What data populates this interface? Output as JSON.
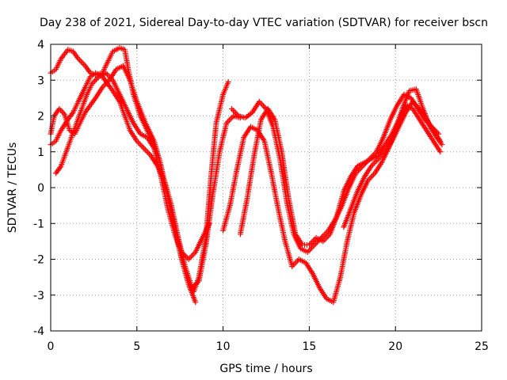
{
  "chart_data": {
    "type": "scatter",
    "title": "Day 238 of 2021, Sidereal Day-to-day VTEC variation (SDTVAR) for receiver bscn",
    "xlabel": "GPS time / hours",
    "ylabel": "SDTVAR / TECUs",
    "xlim": [
      0,
      25
    ],
    "ylim": [
      -4,
      4
    ],
    "xticks": [
      0,
      5,
      10,
      15,
      20,
      25
    ],
    "yticks": [
      -4,
      -3,
      -2,
      -1,
      0,
      1,
      2,
      3,
      4
    ],
    "xtick_labels": [
      "0",
      "5",
      "10",
      "15",
      "20",
      "25"
    ],
    "ytick_labels": [
      "-4",
      "-3",
      "-2",
      "-1",
      "0",
      "1",
      "2",
      "3",
      "4"
    ],
    "grid": true,
    "marker": "plus",
    "color": "#ff0000",
    "series": [
      {
        "x": [
          0.0,
          0.3,
          0.6,
          1.0,
          1.3,
          1.6,
          2.0,
          2.3,
          2.6,
          3.0,
          3.3,
          3.6,
          4.0,
          4.3,
          4.5,
          4.8,
          5.2,
          5.6,
          6.0,
          6.3,
          6.6,
          7.0,
          7.3,
          7.6,
          8.0,
          8.3,
          8.6,
          9.0,
          9.3,
          9.6,
          10.0,
          10.3
        ],
        "y": [
          3.2,
          3.3,
          3.6,
          3.85,
          3.8,
          3.6,
          3.4,
          3.2,
          3.15,
          3.2,
          3.5,
          3.8,
          3.9,
          3.85,
          3.3,
          2.6,
          2.0,
          1.6,
          1.2,
          0.8,
          0.1,
          -0.6,
          -1.3,
          -2.0,
          -2.6,
          -2.9,
          -2.5,
          -1.4,
          0.3,
          1.8,
          2.6,
          2.95
        ]
      },
      {
        "x": [
          0.0,
          0.3,
          0.6,
          1.0,
          1.3,
          1.6,
          2.0,
          2.3,
          2.6,
          3.0,
          3.3,
          3.6,
          4.0,
          4.3,
          4.6,
          5.0,
          5.4,
          5.8,
          6.2,
          6.6,
          7.0,
          7.4,
          7.8,
          8.2,
          8.6,
          9.0,
          9.4,
          9.8,
          10.2,
          10.6,
          11.0
        ],
        "y": [
          1.2,
          1.3,
          1.6,
          1.9,
          2.1,
          2.4,
          2.8,
          3.1,
          3.2,
          3.1,
          2.9,
          2.7,
          2.4,
          2.0,
          1.6,
          1.3,
          1.1,
          0.9,
          0.6,
          0.2,
          -0.5,
          -1.4,
          -2.2,
          -2.8,
          -2.6,
          -1.6,
          -0.2,
          1.0,
          1.8,
          2.0,
          1.95
        ]
      },
      {
        "x": [
          0.0,
          0.2,
          0.5,
          0.8,
          1.1,
          1.4,
          1.7,
          2.0,
          2.3,
          2.6,
          3.0,
          3.4,
          3.8,
          4.2,
          4.6,
          5.0,
          5.5,
          6.0,
          6.4,
          6.8,
          7.2,
          7.6,
          8.0,
          8.4
        ],
        "y": [
          1.5,
          2.0,
          2.2,
          2.05,
          1.6,
          1.5,
          1.8,
          2.1,
          2.3,
          2.5,
          2.8,
          3.0,
          3.3,
          3.4,
          3.0,
          2.4,
          1.8,
          1.3,
          0.6,
          -0.3,
          -1.2,
          -2.0,
          -2.7,
          -3.2
        ]
      },
      {
        "x": [
          0.3,
          0.6,
          0.9,
          1.2,
          1.5,
          1.8,
          2.1,
          2.4,
          2.8,
          3.2,
          3.6,
          4.0,
          4.4,
          4.8,
          5.2,
          5.6,
          6.0,
          6.4,
          6.8,
          7.2,
          7.6,
          8.0,
          8.4,
          8.8,
          9.2
        ],
        "y": [
          0.4,
          0.6,
          1.0,
          1.4,
          1.8,
          2.2,
          2.6,
          2.9,
          3.1,
          3.2,
          3.0,
          2.6,
          2.2,
          1.8,
          1.5,
          1.4,
          1.1,
          0.3,
          -0.6,
          -1.3,
          -1.8,
          -2.0,
          -1.8,
          -1.4,
          -1.0
        ]
      },
      {
        "x": [
          10.5,
          10.9,
          11.3,
          11.7,
          12.1,
          12.5,
          12.9,
          13.3,
          13.7,
          14.1,
          14.5,
          14.9,
          15.3,
          15.7,
          16.1,
          16.5,
          16.9,
          17.3,
          17.7,
          18.1,
          18.5,
          18.9,
          19.3,
          19.7,
          20.1,
          20.5,
          20.9,
          21.3,
          21.7,
          22.1,
          22.5
        ],
        "y": [
          2.2,
          2.0,
          1.95,
          2.1,
          2.4,
          2.2,
          1.7,
          0.8,
          -0.4,
          -1.3,
          -1.7,
          -1.8,
          -1.6,
          -1.4,
          -1.2,
          -0.9,
          -0.5,
          0.0,
          0.4,
          0.6,
          0.8,
          1.0,
          1.4,
          1.9,
          2.3,
          2.6,
          2.5,
          2.2,
          1.9,
          1.7,
          1.5
        ]
      },
      {
        "x": [
          10.0,
          10.4,
          10.8,
          11.2,
          11.6,
          12.0,
          12.4,
          12.8,
          13.2,
          13.6,
          14.0,
          14.4,
          14.8,
          15.2,
          15.6,
          16.0,
          16.4,
          16.8,
          17.2,
          17.6,
          18.0,
          18.4,
          18.8,
          19.2,
          19.6,
          20.0,
          20.4,
          20.8,
          21.2,
          21.6,
          22.0,
          22.4,
          22.7
        ],
        "y": [
          -1.2,
          -0.5,
          0.5,
          1.4,
          1.7,
          1.6,
          1.3,
          0.4,
          -0.6,
          -1.5,
          -2.2,
          -2.0,
          -2.1,
          -2.4,
          -2.8,
          -3.1,
          -3.2,
          -2.5,
          -1.5,
          -0.7,
          -0.2,
          0.2,
          0.4,
          0.7,
          1.1,
          1.6,
          2.2,
          2.7,
          2.75,
          2.2,
          1.7,
          1.4,
          1.2
        ]
      },
      {
        "x": [
          11.0,
          11.4,
          11.8,
          12.2,
          12.6,
          13.0,
          13.4,
          13.8,
          14.2,
          14.6,
          15.0,
          15.4,
          15.8,
          16.2,
          16.6,
          17.0,
          17.4,
          17.8,
          18.2,
          18.6,
          19.0,
          19.4,
          19.8,
          20.2,
          20.6,
          21.0,
          21.4,
          21.8,
          22.2,
          22.6
        ],
        "y": [
          -1.3,
          -0.3,
          0.9,
          1.9,
          2.2,
          1.9,
          1.0,
          -0.3,
          -1.3,
          -1.6,
          -1.6,
          -1.4,
          -1.5,
          -1.3,
          -0.8,
          -0.1,
          0.3,
          0.6,
          0.7,
          0.8,
          0.9,
          1.2,
          1.5,
          1.9,
          2.3,
          2.2,
          1.9,
          1.6,
          1.3,
          1.0
        ]
      },
      {
        "x": [
          17.0,
          17.4,
          17.8,
          18.2,
          18.6,
          19.0,
          19.4,
          19.8,
          20.2,
          20.6,
          21.0,
          21.4,
          21.8,
          22.2,
          22.6
        ],
        "y": [
          -1.1,
          -0.6,
          -0.1,
          0.3,
          0.6,
          0.8,
          1.0,
          1.3,
          1.7,
          2.1,
          2.4,
          2.2,
          1.9,
          1.6,
          1.3
        ]
      }
    ]
  }
}
